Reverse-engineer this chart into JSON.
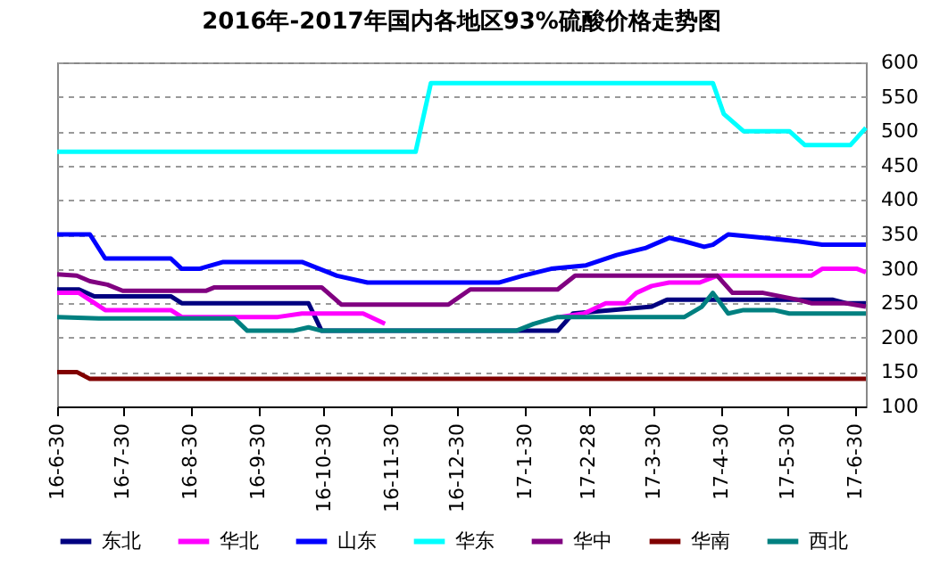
{
  "chart_data": {
    "type": "line",
    "title": "2016年-2017年国内各地区93%硫酸价格走势图",
    "xlim": [
      "2016-06-30",
      "2017-07-05"
    ],
    "xticks": [
      {
        "value": "2016-06-30",
        "label": "16-6-30"
      },
      {
        "value": "2016-07-30",
        "label": "16-7-30"
      },
      {
        "value": "2016-08-30",
        "label": "16-8-30"
      },
      {
        "value": "2016-09-30",
        "label": "16-9-30"
      },
      {
        "value": "2016-10-30",
        "label": "16-10-30"
      },
      {
        "value": "2016-11-30",
        "label": "16-11-30"
      },
      {
        "value": "2016-12-30",
        "label": "16-12-30"
      },
      {
        "value": "2017-01-30",
        "label": "17-1-30"
      },
      {
        "value": "2017-02-28",
        "label": "17-2-28"
      },
      {
        "value": "2017-03-30",
        "label": "17-3-30"
      },
      {
        "value": "2017-04-30",
        "label": "17-4-30"
      },
      {
        "value": "2017-05-30",
        "label": "17-5-30"
      },
      {
        "value": "2017-06-30",
        "label": "17-6-30"
      }
    ],
    "ylim": [
      100,
      600
    ],
    "yticks": [
      100,
      150,
      200,
      250,
      300,
      350,
      400,
      450,
      500,
      550,
      600
    ],
    "grid": "y",
    "legend": "bottom",
    "marker": "none",
    "line_style": "solid",
    "series": [
      {
        "name": "东北",
        "color": "#000080",
        "x": [
          "2016-06-30",
          "2016-07-10",
          "2016-07-17",
          "2016-08-21",
          "2016-08-26",
          "2016-10-23",
          "2016-10-29",
          "2017-02-14",
          "2017-02-21",
          "2017-03-29",
          "2017-04-05",
          "2017-06-20",
          "2017-06-26",
          "2017-07-05"
        ],
        "values": [
          270,
          270,
          260,
          260,
          250,
          250,
          210,
          210,
          235,
          245,
          255,
          255,
          250,
          250
        ]
      },
      {
        "name": "华北",
        "color": "#ff00ff",
        "x": [
          "2016-06-30",
          "2016-07-10",
          "2016-07-22",
          "2016-08-21",
          "2016-08-26",
          "2016-10-09",
          "2016-10-20",
          "2016-11-17",
          "2016-11-27",
          "2016-12-20",
          "2017-02-15",
          "2017-02-26",
          "2017-03-08",
          "2017-03-17",
          "2017-03-22",
          "2017-03-29",
          "2017-04-06",
          "2017-04-20",
          "2017-04-28",
          "2017-06-10",
          "2017-06-15",
          "2017-07-01",
          "2017-07-05"
        ],
        "values": [
          265,
          265,
          240,
          240,
          230,
          230,
          235,
          235,
          220,
          null,
          230,
          235,
          250,
          250,
          265,
          275,
          280,
          280,
          290,
          290,
          300,
          300,
          295
        ]
      },
      {
        "name": "山东",
        "color": "#0000ff",
        "x": [
          "2016-06-30",
          "2016-07-15",
          "2016-07-22",
          "2016-08-21",
          "2016-08-26",
          "2016-09-03",
          "2016-09-14",
          "2016-10-20",
          "2016-11-05",
          "2016-11-19",
          "2017-01-18",
          "2017-01-29",
          "2017-02-11",
          "2017-02-27",
          "2017-03-13",
          "2017-03-26",
          "2017-04-06",
          "2017-04-13",
          "2017-04-22",
          "2017-04-26",
          "2017-05-03",
          "2017-05-19",
          "2017-06-04",
          "2017-06-15",
          "2017-07-05"
        ],
        "values": [
          350,
          350,
          315,
          315,
          300,
          300,
          310,
          310,
          290,
          280,
          280,
          290,
          300,
          305,
          320,
          330,
          345,
          340,
          332,
          335,
          350,
          345,
          340,
          335,
          335
        ]
      },
      {
        "name": "华东",
        "color": "#00ffff",
        "x": [
          "2016-06-30",
          "2016-12-11",
          "2016-12-18",
          "2017-04-26",
          "2017-05-01",
          "2017-05-10",
          "2017-05-31",
          "2017-06-07",
          "2017-06-28",
          "2017-07-05"
        ],
        "values": [
          470,
          470,
          570,
          570,
          525,
          500,
          500,
          480,
          480,
          505
        ]
      },
      {
        "name": "华中",
        "color": "#800080",
        "x": [
          "2016-06-30",
          "2016-07-09",
          "2016-07-15",
          "2016-07-23",
          "2016-07-30",
          "2016-09-06",
          "2016-09-10",
          "2016-10-29",
          "2016-11-07",
          "2016-12-26",
          "2017-01-05",
          "2017-02-14",
          "2017-02-22",
          "2017-04-28",
          "2017-05-05",
          "2017-05-19",
          "2017-06-04",
          "2017-06-10",
          "2017-06-26",
          "2017-07-05"
        ],
        "values": [
          292,
          290,
          282,
          277,
          268,
          268,
          273,
          273,
          248,
          248,
          270,
          270,
          290,
          290,
          265,
          265,
          255,
          250,
          250,
          245
        ]
      },
      {
        "name": "华南",
        "color": "#800000",
        "x": [
          "2016-06-30",
          "2016-07-09",
          "2016-07-15",
          "2017-07-05"
        ],
        "values": [
          150,
          150,
          140,
          140
        ]
      },
      {
        "name": "西北",
        "color": "#008080",
        "x": [
          "2016-06-30",
          "2016-07-19",
          "2016-09-19",
          "2016-09-25",
          "2016-10-16",
          "2016-10-23",
          "2016-10-29",
          "2017-01-26",
          "2017-02-03",
          "2017-02-14",
          "2017-04-13",
          "2017-04-21",
          "2017-04-26",
          "2017-05-03",
          "2017-05-10",
          "2017-05-24",
          "2017-05-31",
          "2017-07-05"
        ],
        "values": [
          230,
          228,
          228,
          210,
          210,
          215,
          210,
          210,
          220,
          230,
          230,
          245,
          265,
          235,
          240,
          240,
          235,
          235
        ]
      }
    ]
  }
}
